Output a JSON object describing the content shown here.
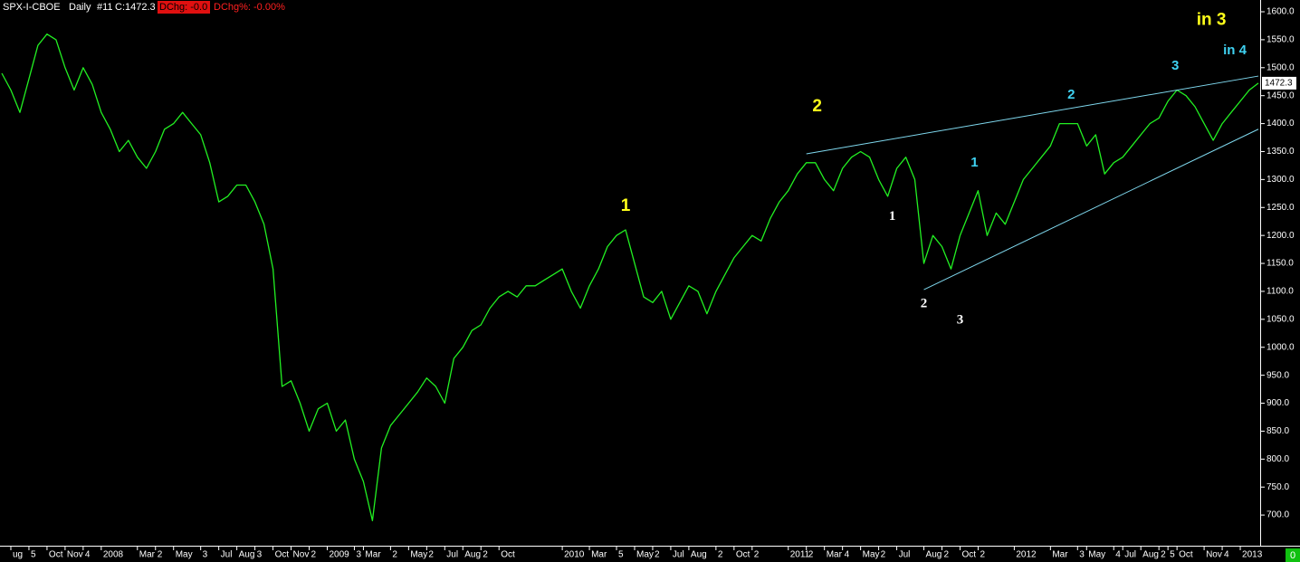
{
  "chart_data": {
    "type": "line",
    "header": {
      "symbol": "SPX-I-CBOE",
      "period": "Daily",
      "number": "#11",
      "close": "C:1472.3",
      "dchg": "DChg: -0.0",
      "dchg_pct": "DChg%: -0.00%"
    },
    "corner_label": "0",
    "categories": [
      null,
      "ug",
      null,
      "5",
      null,
      "Oct",
      null,
      "Nov",
      null,
      "4",
      null,
      "2008",
      null,
      null,
      null,
      "Mar",
      null,
      "2",
      null,
      "May",
      null,
      null,
      "3",
      null,
      "Jul",
      null,
      "Aug",
      null,
      "3",
      null,
      "Oct",
      null,
      "Nov",
      null,
      "2",
      null,
      "2009",
      null,
      null,
      "3",
      "Mar",
      null,
      null,
      "2",
      null,
      "May",
      null,
      "2",
      null,
      "Jul",
      null,
      "Aug",
      null,
      "2",
      null,
      "Oct",
      null,
      null,
      null,
      null,
      null,
      null,
      "2010",
      null,
      null,
      "Mar",
      null,
      null,
      "5",
      null,
      "May",
      null,
      "2",
      null,
      "Jul",
      null,
      "Aug",
      null,
      null,
      "2",
      null,
      "Oct",
      null,
      "2",
      null,
      null,
      null,
      "2011",
      null,
      "2",
      null,
      "Mar",
      null,
      "4",
      null,
      "May",
      null,
      "2",
      null,
      "Jul",
      null,
      null,
      "Aug",
      null,
      "2",
      null,
      "Oct",
      null,
      "2",
      null,
      null,
      null,
      "2012",
      null,
      null,
      null,
      "Mar",
      null,
      null,
      "3",
      "May",
      null,
      null,
      "4",
      "Jul",
      null,
      "Aug",
      null,
      "2",
      "5",
      "Oct",
      null,
      null,
      "Nov",
      null,
      "4",
      null,
      "2013",
      null,
      null
    ],
    "series": [
      {
        "name": "SPX-I-CBOE",
        "color": "#22f022",
        "values": [
          1490,
          1460,
          1420,
          1480,
          1540,
          1560,
          1550,
          1500,
          1460,
          1500,
          1470,
          1420,
          1390,
          1350,
          1370,
          1340,
          1320,
          1350,
          1390,
          1400,
          1420,
          1400,
          1380,
          1330,
          1260,
          1270,
          1290,
          1290,
          1260,
          1220,
          1140,
          930,
          940,
          900,
          850,
          890,
          900,
          850,
          870,
          800,
          760,
          690,
          820,
          860,
          880,
          900,
          920,
          945,
          930,
          900,
          980,
          1000,
          1030,
          1040,
          1070,
          1090,
          1100,
          1090,
          1110,
          1110,
          1120,
          1130,
          1140,
          1100,
          1070,
          1110,
          1140,
          1180,
          1200,
          1210,
          1150,
          1090,
          1080,
          1100,
          1050,
          1080,
          1110,
          1100,
          1060,
          1100,
          1130,
          1160,
          1180,
          1200,
          1190,
          1230,
          1260,
          1280,
          1310,
          1330,
          1330,
          1300,
          1280,
          1320,
          1340,
          1350,
          1340,
          1300,
          1270,
          1320,
          1340,
          1300,
          1150,
          1200,
          1180,
          1140,
          1200,
          1240,
          1280,
          1200,
          1240,
          1220,
          1260,
          1300,
          1320,
          1340,
          1360,
          1400,
          1400,
          1400,
          1360,
          1380,
          1310,
          1330,
          1340,
          1360,
          1380,
          1400,
          1410,
          1440,
          1460,
          1450,
          1430,
          1400,
          1370,
          1400,
          1420,
          1440,
          1460,
          1472.3
        ]
      }
    ],
    "ylim": [
      650,
      1600
    ],
    "yticks": [
      {
        "value": 700,
        "label": "700.0"
      },
      {
        "value": 750,
        "label": "750.0"
      },
      {
        "value": 800,
        "label": "800.0"
      },
      {
        "value": 850,
        "label": "850.0"
      },
      {
        "value": 900,
        "label": "900.0"
      },
      {
        "value": 950,
        "label": "950.0"
      },
      {
        "value": 1000,
        "label": "1000.0"
      },
      {
        "value": 1050,
        "label": "1050.0"
      },
      {
        "value": 1100,
        "label": "1100.0"
      },
      {
        "value": 1150,
        "label": "1150.0"
      },
      {
        "value": 1200,
        "label": "1200.0"
      },
      {
        "value": 1250,
        "label": "1250.0"
      },
      {
        "value": 1300,
        "label": "1300.0"
      },
      {
        "value": 1350,
        "label": "1350.0"
      },
      {
        "value": 1400,
        "label": "1400.0"
      },
      {
        "value": 1450,
        "label": "1450.0"
      },
      {
        "value": 1500,
        "label": "1500.0"
      },
      {
        "value": 1550,
        "label": "1550.0"
      },
      {
        "value": 1600,
        "label": "1600.0"
      }
    ],
    "trendlines": [
      {
        "color": "#7fd8ee",
        "x": [
          89,
          139
        ],
        "y": [
          1346,
          1485
        ]
      },
      {
        "color": "#7fd8ee",
        "x": [
          102,
          139
        ],
        "y": [
          1103,
          1390
        ]
      }
    ],
    "annotations": [
      {
        "text": "1",
        "x": 69,
        "y": 1252,
        "color": "#ffff1a"
      },
      {
        "text": "2",
        "x": 90.2,
        "y": 1430,
        "color": "#ffff1a"
      },
      {
        "text": "in 3",
        "x": 133.8,
        "y": 1585,
        "color": "#ffff1a"
      },
      {
        "text": "in 4",
        "x": 136.4,
        "y": 1530,
        "color": "#3fd2f2"
      },
      {
        "text": "1",
        "x": 98.5,
        "y": 1233,
        "color": "#ffffff"
      },
      {
        "text": "2",
        "x": 102,
        "y": 1077,
        "color": "#ffffff"
      },
      {
        "text": "3",
        "x": 106,
        "y": 1048,
        "color": "#ffffff"
      },
      {
        "text": "1",
        "x": 107.6,
        "y": 1330,
        "color": "#3fd2f2"
      },
      {
        "text": "2",
        "x": 118.3,
        "y": 1451,
        "color": "#3fd2f2"
      },
      {
        "text": "3",
        "x": 129.8,
        "y": 1503,
        "color": "#3fd2f2"
      }
    ]
  }
}
